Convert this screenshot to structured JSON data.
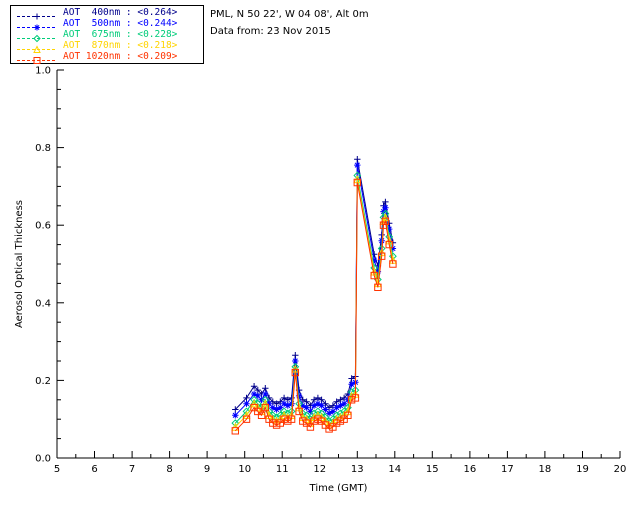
{
  "header": {
    "location": "PML, N 50 22', W 04 08', Alt 0m",
    "date": "Data from: 23 Nov 2015"
  },
  "chart_data": {
    "type": "line",
    "title": "",
    "xlabel": "Time (GMT)",
    "ylabel": "Aerosol Optical Thickness",
    "xlim": [
      5,
      20
    ],
    "ylim": [
      0.0,
      1.0
    ],
    "xtick_step": 1,
    "ytick_step": 0.2,
    "x_minor_step": 0.5,
    "y_minor_step": 0.05,
    "grid": false,
    "legend_position": "top-left",
    "background": "#FFFFFF",
    "axis_color": "#000000",
    "x": [
      9.75,
      10.05,
      10.25,
      10.35,
      10.45,
      10.55,
      10.65,
      10.75,
      10.85,
      10.95,
      11.05,
      11.15,
      11.25,
      11.35,
      11.45,
      11.55,
      11.65,
      11.75,
      11.85,
      11.95,
      12.05,
      12.15,
      12.25,
      12.35,
      12.45,
      12.55,
      12.65,
      12.75,
      12.85,
      12.95,
      13.0,
      13.45,
      13.55,
      13.65,
      13.7,
      13.75,
      13.85,
      13.95
    ],
    "series": [
      {
        "name": "AOT 400nm",
        "legend": "AOT  400nm : <0.264>",
        "mean": 0.264,
        "color": "#00008B",
        "symbol": "plus",
        "values": [
          0.125,
          0.155,
          0.185,
          0.175,
          0.165,
          0.18,
          0.155,
          0.145,
          0.14,
          0.145,
          0.155,
          0.15,
          0.155,
          0.265,
          0.175,
          0.15,
          0.145,
          0.135,
          0.15,
          0.155,
          0.15,
          0.14,
          0.13,
          0.135,
          0.145,
          0.15,
          0.155,
          0.165,
          0.205,
          0.21,
          0.77,
          0.525,
          0.495,
          0.575,
          0.65,
          0.66,
          0.605,
          0.555
        ]
      },
      {
        "name": "AOT 500nm",
        "legend": "AOT  500nm : <0.244>",
        "mean": 0.244,
        "color": "#0000FF",
        "symbol": "asterisk",
        "values": [
          0.11,
          0.14,
          0.165,
          0.16,
          0.15,
          0.165,
          0.14,
          0.13,
          0.125,
          0.13,
          0.14,
          0.135,
          0.14,
          0.25,
          0.16,
          0.135,
          0.13,
          0.12,
          0.135,
          0.14,
          0.135,
          0.125,
          0.115,
          0.12,
          0.13,
          0.135,
          0.14,
          0.15,
          0.19,
          0.195,
          0.755,
          0.51,
          0.48,
          0.56,
          0.635,
          0.645,
          0.59,
          0.54
        ]
      },
      {
        "name": "AOT 675nm",
        "legend": "AOT  675nm : <0.228>",
        "mean": 0.228,
        "color": "#00CC7A",
        "symbol": "diamond",
        "values": [
          0.09,
          0.12,
          0.15,
          0.14,
          0.13,
          0.15,
          0.12,
          0.11,
          0.105,
          0.11,
          0.12,
          0.115,
          0.12,
          0.235,
          0.14,
          0.115,
          0.11,
          0.1,
          0.115,
          0.12,
          0.115,
          0.105,
          0.095,
          0.1,
          0.11,
          0.115,
          0.12,
          0.13,
          0.17,
          0.175,
          0.728,
          0.49,
          0.46,
          0.54,
          0.62,
          0.63,
          0.57,
          0.52
        ]
      },
      {
        "name": "AOT 870nm",
        "legend": "AOT  870nm : <0.218>",
        "mean": 0.218,
        "color": "#FFD400",
        "symbol": "triangle",
        "values": [
          0.08,
          0.11,
          0.14,
          0.13,
          0.12,
          0.14,
          0.11,
          0.1,
          0.095,
          0.1,
          0.11,
          0.105,
          0.11,
          0.23,
          0.13,
          0.105,
          0.1,
          0.09,
          0.105,
          0.11,
          0.105,
          0.095,
          0.085,
          0.09,
          0.1,
          0.105,
          0.11,
          0.12,
          0.16,
          0.165,
          0.718,
          0.48,
          0.45,
          0.53,
          0.61,
          0.62,
          0.56,
          0.51
        ]
      },
      {
        "name": "AOT 1020nm",
        "legend": "AOT 1020nm : <0.209>",
        "mean": 0.209,
        "color": "#FF3300",
        "symbol": "square",
        "values": [
          0.07,
          0.1,
          0.13,
          0.12,
          0.11,
          0.13,
          0.1,
          0.09,
          0.085,
          0.09,
          0.1,
          0.095,
          0.1,
          0.22,
          0.12,
          0.095,
          0.09,
          0.08,
          0.095,
          0.1,
          0.095,
          0.085,
          0.075,
          0.08,
          0.09,
          0.095,
          0.1,
          0.11,
          0.15,
          0.155,
          0.71,
          0.47,
          0.44,
          0.52,
          0.6,
          0.61,
          0.55,
          0.5
        ]
      }
    ]
  }
}
